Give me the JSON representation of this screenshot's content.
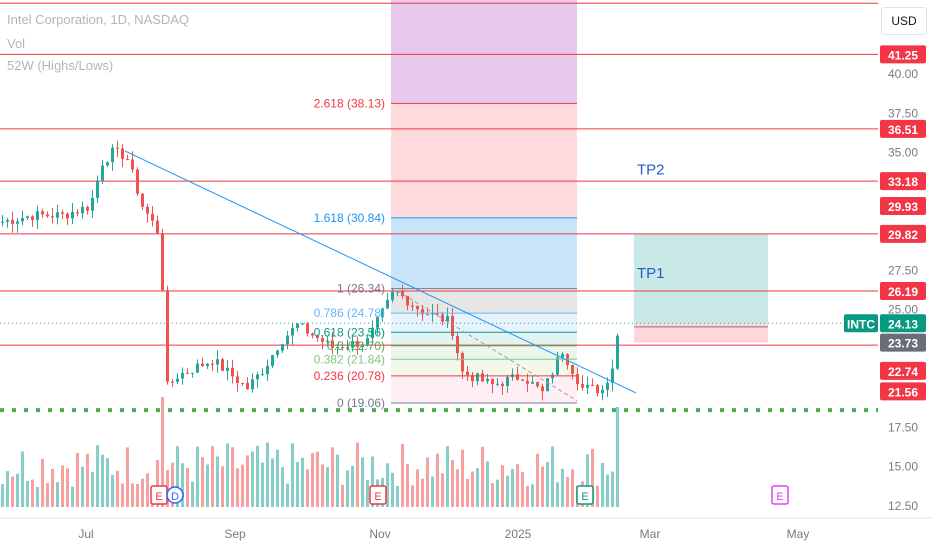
{
  "header": {
    "symbol_line": "Intel Corporation, 1D, NASDAQ",
    "volume_label": "Vol",
    "indicator_label": "52W (Highs/Lows)",
    "currency": "USD"
  },
  "colors": {
    "up": "#26a69a",
    "down": "#ef5350",
    "level_line": "#f23645",
    "trendline": "#2196f3",
    "fib_fill_top": "#e1bee7",
    "fib_fill_red": "#ffcdd2",
    "fib_fill_blue": "#bbdefb",
    "support_dots": "#4caf50",
    "target_green": "#b2dfdb",
    "stop_red": "#ffcdd2",
    "tp_text": "#1e5ec7"
  },
  "chart_data": {
    "type": "candlestick",
    "symbol": "INTC",
    "interval": "1D",
    "exchange": "NASDAQ",
    "y_axis_ticks": [
      12.5,
      15.0,
      17.5,
      20.0,
      22.5,
      25.0,
      27.5,
      30.0,
      32.5,
      35.0,
      37.5,
      40.0
    ],
    "y_axis_tick_labels": [
      "12.50",
      "15.00",
      "17.50",
      "",
      "",
      "25.00",
      "27.50",
      "",
      "",
      "35.00",
      "37.50",
      "40.00"
    ],
    "ylim": [
      11.0,
      44.0
    ],
    "x_axis_labels": [
      "Jul",
      "Sep",
      "Nov",
      "2025",
      "Mar",
      "May"
    ],
    "price_levels": [
      44.5,
      41.25,
      36.51,
      33.18,
      29.82,
      26.19,
      22.74
    ],
    "price_tags": [
      {
        "label": "41.25",
        "value": 41.25,
        "color": "#f23645"
      },
      {
        "label": "36.51",
        "value": 36.51,
        "color": "#f23645"
      },
      {
        "label": "33.18",
        "value": 33.18,
        "color": "#f23645"
      },
      {
        "label": "29.93",
        "value": 31.6,
        "color": "#f23645"
      },
      {
        "label": "29.82",
        "value": 29.82,
        "color": "#f23645"
      },
      {
        "label": "26.19",
        "value": 26.19,
        "color": "#f23645"
      },
      {
        "label": "24.13",
        "value": 24.13,
        "color": "#089981",
        "symbol": "INTC"
      },
      {
        "label": "23.73",
        "value": 22.9,
        "color": "#6a6d78"
      },
      {
        "label": "22.74",
        "value": 21.1,
        "color": "#f23645"
      },
      {
        "label": "21.56",
        "value": 19.8,
        "color": "#f23645"
      }
    ],
    "fibonacci": [
      {
        "label": "2.618 (38.13)",
        "ratio": 2.618,
        "price": 38.13,
        "color": "#f23645"
      },
      {
        "label": "1.618 (30.84)",
        "ratio": 1.618,
        "price": 30.84,
        "color": "#2196f3"
      },
      {
        "label": "1 (26.34)",
        "ratio": 1,
        "price": 26.34,
        "color": "#787b86"
      },
      {
        "label": "0.786 (24.78)",
        "ratio": 0.786,
        "price": 24.78,
        "color": "#64b5f6"
      },
      {
        "label": "0.618 (23.56)",
        "ratio": 0.618,
        "price": 23.56,
        "color": "#089981"
      },
      {
        "label": "0.5 (22.70)",
        "ratio": 0.5,
        "price": 22.7,
        "color": "#4caf50"
      },
      {
        "label": "0.382 (21.84)",
        "ratio": 0.382,
        "price": 21.84,
        "color": "#81c784"
      },
      {
        "label": "0.236 (20.78)",
        "ratio": 0.236,
        "price": 20.78,
        "color": "#f23645"
      },
      {
        "label": "0 (19.06)",
        "ratio": 0,
        "price": 19.06,
        "color": "#787b86"
      }
    ],
    "trade_targets": [
      {
        "label": "TP1",
        "price": 27.4
      },
      {
        "label": "TP2",
        "price": 34.0
      }
    ],
    "support_line": 18.6,
    "earnings_markers": [
      {
        "label": "E",
        "status": "past"
      },
      {
        "label": "D",
        "status": "dividend"
      },
      {
        "label": "E",
        "status": "past"
      },
      {
        "label": "E",
        "status": "past"
      },
      {
        "label": "E",
        "status": "upcoming"
      }
    ],
    "last_price": 24.13
  }
}
